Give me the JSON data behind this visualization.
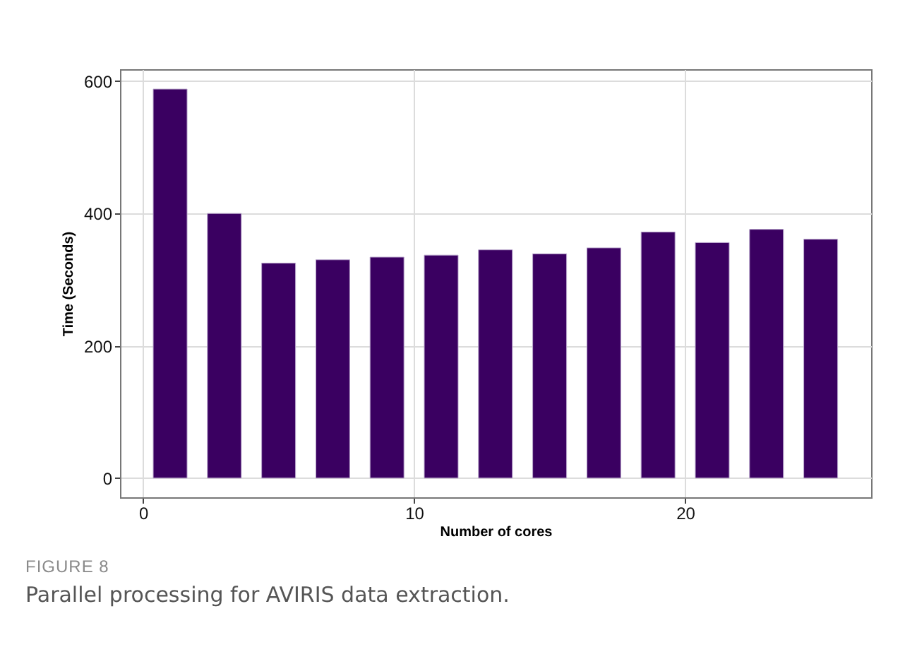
{
  "chart_data": {
    "type": "bar",
    "xlabel": "Number of cores",
    "ylabel": "Time (Seconds)",
    "x": [
      1,
      3,
      5,
      7,
      9,
      11,
      13,
      15,
      17,
      19,
      21,
      23,
      25
    ],
    "values": [
      588,
      400,
      325,
      330,
      334,
      337,
      345,
      339,
      348,
      372,
      356,
      376,
      361
    ],
    "color": "#3a0061",
    "xlim": [
      -0.85,
      26.86
    ],
    "xticks": [
      0,
      10,
      20
    ],
    "ylim": [
      -29,
      618
    ],
    "yticks": [
      0,
      200,
      400,
      600
    ],
    "grid": true,
    "annotations": [
      "FIGURE 8",
      "Parallel processing for AVIRIS data extraction."
    ]
  }
}
